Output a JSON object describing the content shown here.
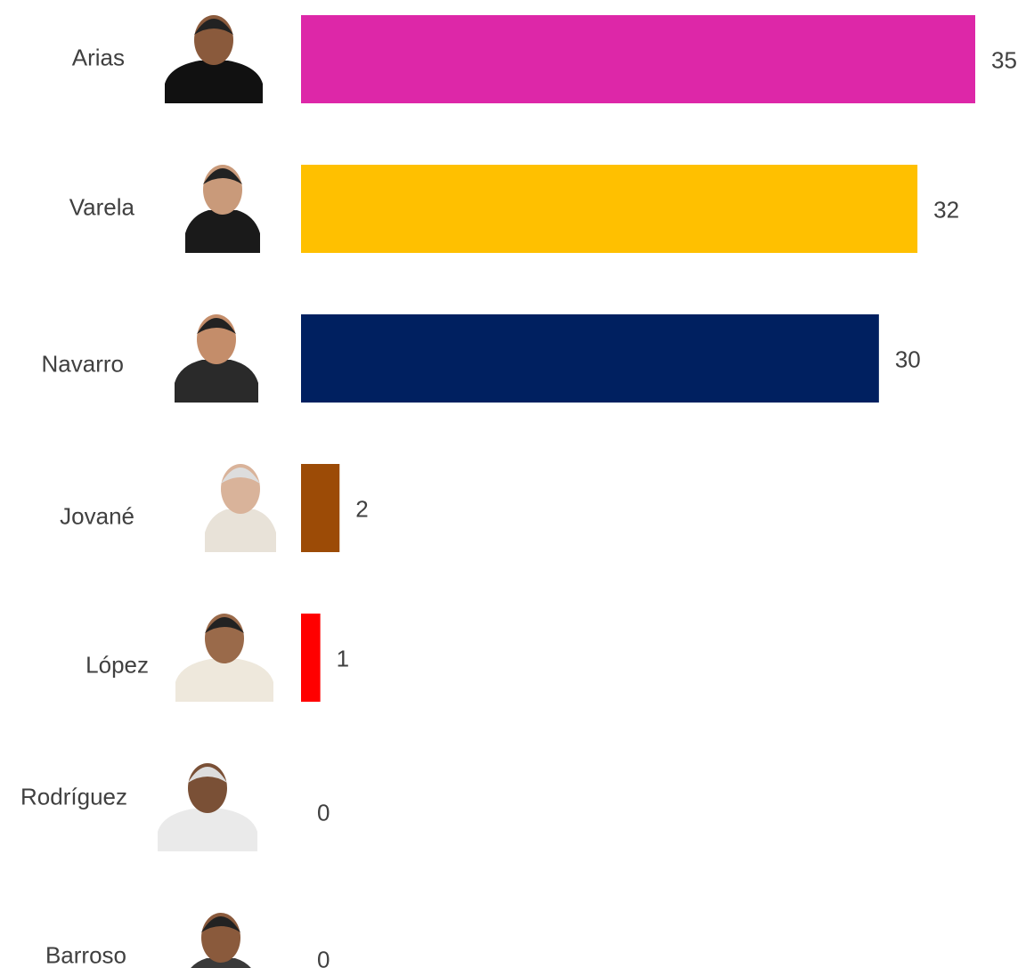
{
  "chart_data": {
    "type": "bar",
    "orientation": "horizontal",
    "categories": [
      "Arias",
      "Varela",
      "Navarro",
      "Jované",
      "López",
      "Rodríguez",
      "Barroso"
    ],
    "values": [
      35,
      32,
      30,
      2,
      1,
      0,
      0
    ],
    "colors": [
      "#dd27a8",
      "#ffc000",
      "#002060",
      "#9c4b06",
      "#ff0000",
      "#888888",
      "#888888"
    ]
  }
}
